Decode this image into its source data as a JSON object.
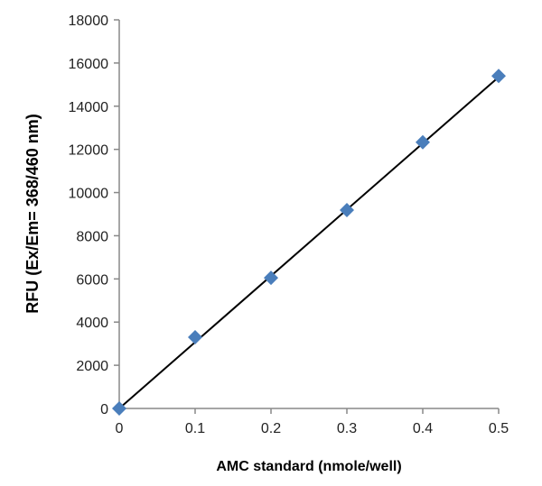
{
  "chart_data": {
    "type": "scatter",
    "title": "",
    "xlabel": "AMC standard (nmole/well)",
    "ylabel": "RFU (Ex/Em= 368/460 nm)",
    "xlim": [
      0,
      0.5
    ],
    "ylim": [
      0,
      18000
    ],
    "xticks": [
      "0",
      "0.1",
      "0.2",
      "0.3",
      "0.4",
      "0.5"
    ],
    "yticks": [
      "0",
      "2000",
      "4000",
      "6000",
      "8000",
      "10000",
      "12000",
      "14000",
      "16000",
      "18000"
    ],
    "grid": false,
    "legend": "none",
    "series": [
      {
        "x": [
          0,
          0.1,
          0.2,
          0.3,
          0.4,
          0.5
        ],
        "y": [
          0,
          3300,
          6050,
          9190,
          12330,
          15400
        ],
        "marker": "diamond",
        "color": "#4a7ebb"
      }
    ],
    "trendline": {
      "type": "linear",
      "x": [
        0,
        0.5
      ],
      "y": [
        0,
        15350
      ],
      "color": "#000000"
    }
  }
}
